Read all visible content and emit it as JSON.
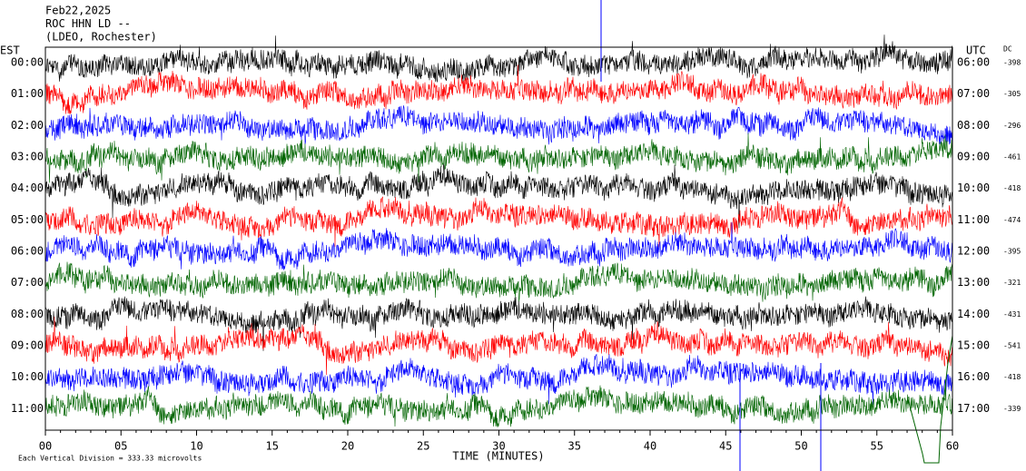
{
  "header": {
    "lines": [
      "Feb22,2025",
      "ROC HHN LD --",
      "(LDEO, Rochester)"
    ]
  },
  "left_axis": {
    "title": "EST",
    "labels": [
      "00:00",
      "01:00",
      "02:00",
      "03:00",
      "04:00",
      "05:00",
      "06:00",
      "07:00",
      "08:00",
      "09:00",
      "10:00",
      "11:00"
    ]
  },
  "right_axis": {
    "title": "UTC",
    "labels": [
      "06:00",
      "07:00",
      "08:00",
      "09:00",
      "10:00",
      "11:00",
      "12:00",
      "13:00",
      "14:00",
      "15:00",
      "16:00",
      "17:00"
    ]
  },
  "dc": {
    "title": "DC",
    "values": [
      -398,
      -305,
      -296,
      -461,
      -418,
      -474,
      -395,
      -321,
      -431,
      -541,
      -418,
      -339
    ]
  },
  "x_axis": {
    "ticks": [
      "00",
      "05",
      "10",
      "15",
      "20",
      "25",
      "30",
      "35",
      "40",
      "45",
      "50",
      "55",
      "60"
    ],
    "label": "TIME (MINUTES)"
  },
  "footer": "Each Vertical Division =  333.33 microvolts"
}
